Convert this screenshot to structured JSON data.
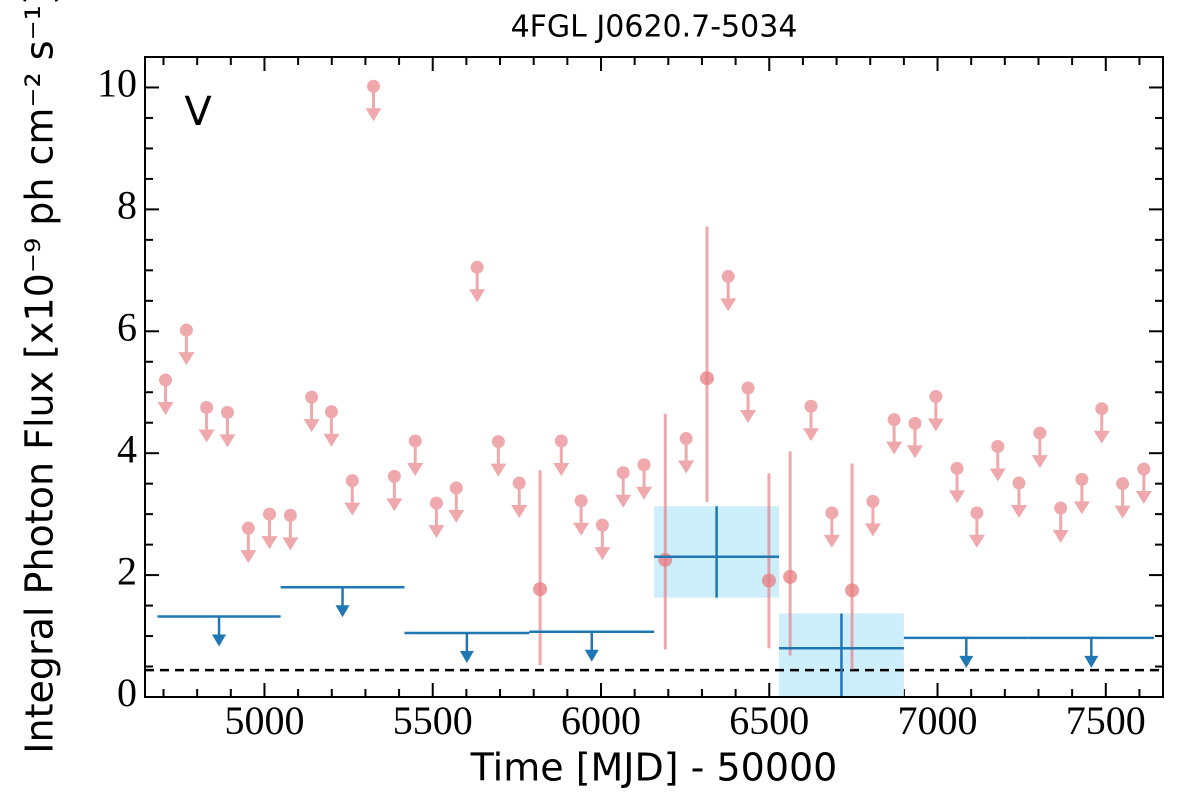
{
  "chart_data": {
    "type": "lightcurve",
    "title": "4FGL J0620.7-5034",
    "xlabel": "Time [MJD] - 50000",
    "ylabel": "Integral Photon Flux [x10⁻⁹ ph cm⁻² s⁻¹]",
    "annotation": "V",
    "annotation_color": "#1f77b4",
    "xlim": [
      4645,
      7670
    ],
    "ylim": [
      0,
      10.5
    ],
    "xticks": [
      5000,
      5500,
      6000,
      6500,
      7000,
      7500
    ],
    "yticks": [
      0,
      2,
      4,
      6,
      8,
      10
    ],
    "xticks_minor": [
      4700,
      4800,
      4900,
      5100,
      5200,
      5300,
      5400,
      5600,
      5700,
      5800,
      5900,
      6100,
      6200,
      6300,
      6400,
      6600,
      6700,
      6800,
      6900,
      7100,
      7200,
      7300,
      7400,
      7600
    ],
    "yticks_minor": [
      0.5,
      1,
      1.5,
      2.5,
      3,
      3.5,
      4.5,
      5,
      5.5,
      6.5,
      7,
      7.5,
      8.5,
      9,
      9.5,
      10.5
    ],
    "reference_line": 0.44,
    "upper_limits": {
      "color": "#e77c80",
      "x": [
        4706,
        4768,
        4828,
        4890,
        4952,
        5015,
        5077,
        5140,
        5199,
        5261,
        5324,
        5386,
        5448,
        5511,
        5570,
        5632,
        5695,
        5757,
        5882,
        5941,
        6004,
        6066,
        6128,
        6253,
        6378,
        6437,
        6624,
        6686,
        6808,
        6871,
        6933,
        6995,
        7058,
        7117,
        7179,
        7242,
        7304,
        7366,
        7429,
        7488,
        7550,
        7613
      ],
      "values": [
        5.2,
        6.02,
        4.75,
        4.67,
        2.77,
        3.0,
        2.98,
        4.92,
        4.68,
        3.55,
        10.02,
        3.62,
        4.2,
        3.18,
        3.43,
        7.05,
        4.19,
        3.51,
        4.2,
        3.22,
        2.82,
        3.68,
        3.81,
        4.24,
        6.9,
        5.07,
        4.77,
        3.02,
        3.21,
        4.55,
        4.49,
        4.93,
        3.75,
        3.02,
        4.11,
        3.51,
        4.33,
        3.1,
        3.57,
        4.73,
        3.5,
        3.74
      ]
    },
    "detections": {
      "color": "#e77c80",
      "x": [
        5819,
        6191,
        6315,
        6499,
        6562,
        6746
      ],
      "values": [
        1.77,
        2.25,
        5.23,
        1.91,
        1.97,
        1.75
      ],
      "low": [
        0.52,
        0.78,
        3.2,
        0.8,
        0.68,
        0.45
      ],
      "high": [
        3.72,
        4.65,
        7.72,
        3.67,
        4.03,
        3.83
      ]
    },
    "binned_upper_limits": {
      "color": "#1f77b4",
      "x_start": [
        4682,
        5048,
        5416,
        5787,
        6900,
        7271
      ],
      "x_end": [
        5048,
        5416,
        5787,
        6158,
        7271,
        7643
      ],
      "values": [
        1.32,
        1.8,
        1.05,
        1.07,
        0.97,
        0.97
      ]
    },
    "binned_detections": {
      "color": "#1f77b4",
      "box_color": "#cdeefb",
      "x_start": [
        6158,
        6529
      ],
      "x_end": [
        6529,
        6900
      ],
      "values": [
        2.3,
        0.8
      ],
      "low": [
        1.63,
        0
      ],
      "high": [
        3.13,
        1.37
      ]
    }
  }
}
